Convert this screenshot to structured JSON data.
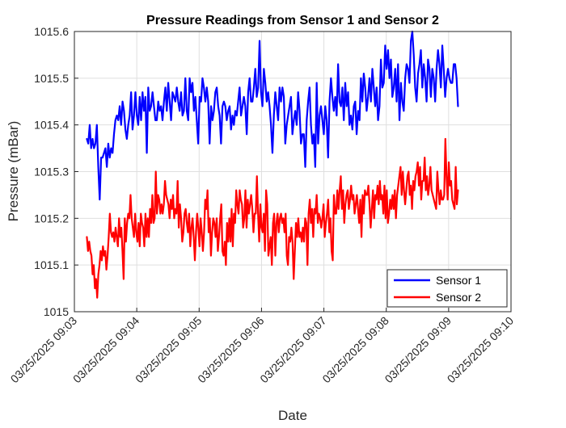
{
  "chart_data": {
    "type": "line",
    "title": "Pressure Readings from Sensor 1 and Sensor 2",
    "xlabel": "Date",
    "ylabel": "Pressure (mBar)",
    "ylim": [
      1015.0,
      1015.6
    ],
    "yticks": [
      "1015",
      "1015.1",
      "1015.2",
      "1015.3",
      "1015.4",
      "1015.5",
      "1015.6"
    ],
    "xlim": [
      "03/25/2025 09:03",
      "03/25/2025 09:10"
    ],
    "xticks": [
      "03/25/2025 09:03",
      "03/25/2025 09:04",
      "03/25/2025 09:05",
      "03/25/2025 09:06",
      "03/25/2025 09:07",
      "03/25/2025 09:08",
      "03/25/2025 09:09",
      "03/25/2025 09:10"
    ],
    "x_start": "03/25/2025 09:03:12",
    "x_end": "03/25/2025 09:09:09",
    "grid": true,
    "legend_position": "bottom-right",
    "series": [
      {
        "name": "Sensor 1",
        "color": "#0000ff",
        "values": [
          1015.37,
          1015.36,
          1015.4,
          1015.35,
          1015.37,
          1015.35,
          1015.36,
          1015.4,
          1015.31,
          1015.24,
          1015.33,
          1015.33,
          1015.34,
          1015.35,
          1015.31,
          1015.36,
          1015.33,
          1015.35,
          1015.34,
          1015.38,
          1015.41,
          1015.42,
          1015.41,
          1015.44,
          1015.4,
          1015.45,
          1015.43,
          1015.39,
          1015.37,
          1015.4,
          1015.42,
          1015.47,
          1015.39,
          1015.42,
          1015.47,
          1015.42,
          1015.4,
          1015.46,
          1015.41,
          1015.47,
          1015.43,
          1015.46,
          1015.34,
          1015.48,
          1015.43,
          1015.44,
          1015.47,
          1015.44,
          1015.41,
          1015.41,
          1015.45,
          1015.43,
          1015.44,
          1015.41,
          1015.45,
          1015.48,
          1015.43,
          1015.49,
          1015.45,
          1015.41,
          1015.47,
          1015.46,
          1015.45,
          1015.48,
          1015.45,
          1015.43,
          1015.47,
          1015.42,
          1015.43,
          1015.5,
          1015.43,
          1015.41,
          1015.5,
          1015.47,
          1015.49,
          1015.43,
          1015.46,
          1015.41,
          1015.36,
          1015.46,
          1015.45,
          1015.5,
          1015.48,
          1015.45,
          1015.48,
          1015.45,
          1015.36,
          1015.44,
          1015.41,
          1015.43,
          1015.47,
          1015.48,
          1015.44,
          1015.42,
          1015.36,
          1015.44,
          1015.45,
          1015.44,
          1015.41,
          1015.43,
          1015.44,
          1015.39,
          1015.42,
          1015.4,
          1015.43,
          1015.42,
          1015.45,
          1015.48,
          1015.42,
          1015.44,
          1015.46,
          1015.44,
          1015.38,
          1015.47,
          1015.5,
          1015.45,
          1015.45,
          1015.48,
          1015.52,
          1015.46,
          1015.48,
          1015.58,
          1015.47,
          1015.44,
          1015.52,
          1015.49,
          1015.45,
          1015.47,
          1015.44,
          1015.4,
          1015.34,
          1015.42,
          1015.47,
          1015.44,
          1015.41,
          1015.48,
          1015.45,
          1015.48,
          1015.46,
          1015.36,
          1015.4,
          1015.42,
          1015.44,
          1015.46,
          1015.38,
          1015.41,
          1015.43,
          1015.4,
          1015.47,
          1015.43,
          1015.36,
          1015.38,
          1015.38,
          1015.31,
          1015.41,
          1015.45,
          1015.48,
          1015.4,
          1015.36,
          1015.38,
          1015.31,
          1015.49,
          1015.36,
          1015.42,
          1015.44,
          1015.41,
          1015.38,
          1015.44,
          1015.41,
          1015.33,
          1015.45,
          1015.5,
          1015.46,
          1015.43,
          1015.46,
          1015.42,
          1015.53,
          1015.45,
          1015.44,
          1015.48,
          1015.41,
          1015.49,
          1015.44,
          1015.47,
          1015.4,
          1015.42,
          1015.39,
          1015.44,
          1015.45,
          1015.38,
          1015.43,
          1015.41,
          1015.5,
          1015.45,
          1015.51,
          1015.48,
          1015.43,
          1015.46,
          1015.5,
          1015.45,
          1015.52,
          1015.48,
          1015.44,
          1015.48,
          1015.41,
          1015.44,
          1015.54,
          1015.48,
          1015.49,
          1015.57,
          1015.52,
          1015.56,
          1015.5,
          1015.54,
          1015.46,
          1015.48,
          1015.52,
          1015.45,
          1015.53,
          1015.41,
          1015.49,
          1015.45,
          1015.43,
          1015.5,
          1015.53,
          1015.52,
          1015.49,
          1015.58,
          1015.6,
          1015.55,
          1015.48,
          1015.45,
          1015.51,
          1015.53,
          1015.56,
          1015.48,
          1015.53,
          1015.5,
          1015.45,
          1015.54,
          1015.52,
          1015.46,
          1015.52,
          1015.5,
          1015.45,
          1015.52,
          1015.56,
          1015.53,
          1015.48,
          1015.57,
          1015.52,
          1015.46,
          1015.5,
          1015.52,
          1015.5,
          1015.49,
          1015.49,
          1015.53,
          1015.53,
          1015.5,
          1015.44
        ]
      },
      {
        "name": "Sensor 2",
        "color": "#ff0000",
        "values": [
          1015.16,
          1015.13,
          1015.15,
          1015.13,
          1015.12,
          1015.08,
          1015.1,
          1015.05,
          1015.07,
          1015.03,
          1015.08,
          1015.1,
          1015.13,
          1015.11,
          1015.14,
          1015.12,
          1015.13,
          1015.09,
          1015.12,
          1015.16,
          1015.21,
          1015.17,
          1015.16,
          1015.17,
          1015.15,
          1015.18,
          1015.16,
          1015.14,
          1015.2,
          1015.16,
          1015.18,
          1015.13,
          1015.07,
          1015.2,
          1015.15,
          1015.19,
          1015.21,
          1015.2,
          1015.25,
          1015.2,
          1015.18,
          1015.16,
          1015.21,
          1015.17,
          1015.15,
          1015.19,
          1015.14,
          1015.21,
          1015.19,
          1015.18,
          1015.14,
          1015.21,
          1015.16,
          1015.2,
          1015.16,
          1015.22,
          1015.19,
          1015.25,
          1015.19,
          1015.2,
          1015.3,
          1015.21,
          1015.25,
          1015.24,
          1015.21,
          1015.23,
          1015.21,
          1015.23,
          1015.28,
          1015.25,
          1015.24,
          1015.23,
          1015.2,
          1015.24,
          1015.22,
          1015.25,
          1015.2,
          1015.22,
          1015.21,
          1015.28,
          1015.18,
          1015.23,
          1015.2,
          1015.15,
          1015.17,
          1015.21,
          1015.22,
          1015.19,
          1015.17,
          1015.21,
          1015.14,
          1015.18,
          1015.2,
          1015.16,
          1015.11,
          1015.17,
          1015.21,
          1015.18,
          1015.14,
          1015.2,
          1015.17,
          1015.13,
          1015.17,
          1015.24,
          1015.22,
          1015.26,
          1015.17,
          1015.2,
          1015.12,
          1015.17,
          1015.2,
          1015.19,
          1015.16,
          1015.2,
          1015.13,
          1015.16,
          1015.2,
          1015.23,
          1015.13,
          1015.12,
          1015.15,
          1015.1,
          1015.19,
          1015.15,
          1015.2,
          1015.15,
          1015.22,
          1015.14,
          1015.21,
          1015.19,
          1015.26,
          1015.23,
          1015.21,
          1015.26,
          1015.24,
          1015.23,
          1015.18,
          1015.2,
          1015.26,
          1015.18,
          1015.24,
          1015.21,
          1015.23,
          1015.25,
          1015.22,
          1015.17,
          1015.21,
          1015.21,
          1015.29,
          1015.21,
          1015.15,
          1015.23,
          1015.18,
          1015.17,
          1015.21,
          1015.13,
          1015.26,
          1015.23,
          1015.12,
          1015.14,
          1015.16,
          1015.1,
          1015.19,
          1015.21,
          1015.12,
          1015.19,
          1015.21,
          1015.17,
          1015.2,
          1015.21,
          1015.19,
          1015.2,
          1015.17,
          1015.21,
          1015.12,
          1015.1,
          1015.16,
          1015.15,
          1015.18,
          1015.15,
          1015.07,
          1015.13,
          1015.19,
          1015.16,
          1015.2,
          1015.16,
          1015.17,
          1015.15,
          1015.18,
          1015.15,
          1015.2,
          1015.19,
          1015.1,
          1015.21,
          1015.24,
          1015.19,
          1015.22,
          1015.16,
          1015.22,
          1015.21,
          1015.25,
          1015.19,
          1015.21,
          1015.2,
          1015.18,
          1015.2,
          1015.23,
          1015.16,
          1015.19,
          1015.21,
          1015.24,
          1015.17,
          1015.2,
          1015.13,
          1015.11,
          1015.25,
          1015.21,
          1015.21,
          1015.26,
          1015.22,
          1015.26,
          1015.29,
          1015.22,
          1015.26,
          1015.19,
          1015.23,
          1015.25,
          1015.26,
          1015.22,
          1015.24,
          1015.27,
          1015.24,
          1015.25,
          1015.21,
          1015.23,
          1015.25,
          1015.22,
          1015.19,
          1015.24,
          1015.16,
          1015.25,
          1015.21,
          1015.26,
          1015.25,
          1015.25,
          1015.27,
          1015.23,
          1015.18,
          1015.22,
          1015.26,
          1015.2,
          1015.25,
          1015.24,
          1015.27,
          1015.23,
          1015.28,
          1015.24,
          1015.25,
          1015.21,
          1015.27,
          1015.2,
          1015.26,
          1015.19,
          1015.21,
          1015.24,
          1015.22,
          1015.25,
          1015.22,
          1015.26,
          1015.2,
          1015.25,
          1015.27,
          1015.29,
          1015.31,
          1015.25,
          1015.3,
          1015.26,
          1015.23,
          1015.26,
          1015.29,
          1015.3,
          1015.25,
          1015.27,
          1015.22,
          1015.28,
          1015.26,
          1015.29,
          1015.3,
          1015.32,
          1015.27,
          1015.31,
          1015.24,
          1015.28,
          1015.28,
          1015.33,
          1015.26,
          1015.29,
          1015.25,
          1015.27,
          1015.31,
          1015.26,
          1015.25,
          1015.24,
          1015.23,
          1015.22,
          1015.3,
          1015.26,
          1015.23,
          1015.26,
          1015.24,
          1015.24,
          1015.25,
          1015.37,
          1015.29,
          1015.24,
          1015.32,
          1015.27,
          1015.28,
          1015.24,
          1015.23,
          1015.22,
          1015.31,
          1015.23,
          1015.26
        ]
      }
    ]
  }
}
